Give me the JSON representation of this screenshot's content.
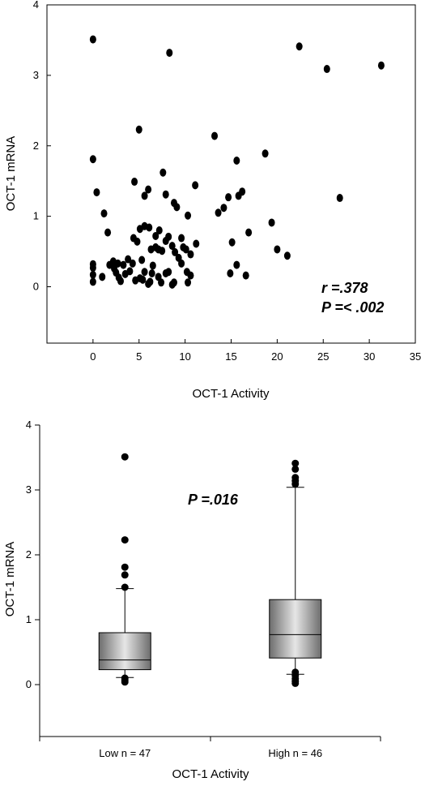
{
  "chart_data": [
    {
      "type": "scatter",
      "xlabel": "OCT-1 Activity",
      "ylabel": "OCT-1 mRNA",
      "xlim": [
        -5,
        35
      ],
      "ylim": [
        -0.8,
        4
      ],
      "xticks": [
        0,
        5,
        10,
        15,
        20,
        25,
        30,
        35
      ],
      "yticks": [
        0,
        1,
        2,
        3,
        4
      ],
      "annotations": [
        "r =.378",
        "P =< .002"
      ],
      "points": [
        {
          "x": 0,
          "y": 3.51
        },
        {
          "x": 8.3,
          "y": 3.32
        },
        {
          "x": 22.4,
          "y": 3.41
        },
        {
          "x": 25.4,
          "y": 3.09
        },
        {
          "x": 31.3,
          "y": 3.14
        },
        {
          "x": 5.0,
          "y": 2.23
        },
        {
          "x": 13.2,
          "y": 2.14
        },
        {
          "x": 18.7,
          "y": 1.89
        },
        {
          "x": 0,
          "y": 1.81
        },
        {
          "x": 15.6,
          "y": 1.79
        },
        {
          "x": 7.6,
          "y": 1.62
        },
        {
          "x": 4.5,
          "y": 1.49
        },
        {
          "x": 11.1,
          "y": 1.44
        },
        {
          "x": 6.0,
          "y": 1.38
        },
        {
          "x": 0.4,
          "y": 1.34
        },
        {
          "x": 16.2,
          "y": 1.35
        },
        {
          "x": 5.6,
          "y": 1.29
        },
        {
          "x": 7.9,
          "y": 1.31
        },
        {
          "x": 15.8,
          "y": 1.29
        },
        {
          "x": 14.7,
          "y": 1.27
        },
        {
          "x": 26.8,
          "y": 1.26
        },
        {
          "x": 8.8,
          "y": 1.19
        },
        {
          "x": 9.1,
          "y": 1.13
        },
        {
          "x": 14.2,
          "y": 1.12
        },
        {
          "x": 13.6,
          "y": 1.05
        },
        {
          "x": 1.2,
          "y": 1.04
        },
        {
          "x": 10.3,
          "y": 1.01
        },
        {
          "x": 19.4,
          "y": 0.91
        },
        {
          "x": 5.6,
          "y": 0.86
        },
        {
          "x": 6.1,
          "y": 0.84
        },
        {
          "x": 5.1,
          "y": 0.82
        },
        {
          "x": 1.6,
          "y": 0.77
        },
        {
          "x": 7.2,
          "y": 0.8
        },
        {
          "x": 16.9,
          "y": 0.77
        },
        {
          "x": 9.6,
          "y": 0.69
        },
        {
          "x": 8.2,
          "y": 0.71
        },
        {
          "x": 6.8,
          "y": 0.72
        },
        {
          "x": 4.4,
          "y": 0.69
        },
        {
          "x": 4.8,
          "y": 0.64
        },
        {
          "x": 7.9,
          "y": 0.65
        },
        {
          "x": 15.1,
          "y": 0.63
        },
        {
          "x": 11.2,
          "y": 0.61
        },
        {
          "x": 8.6,
          "y": 0.58
        },
        {
          "x": 9.8,
          "y": 0.56
        },
        {
          "x": 6.8,
          "y": 0.56
        },
        {
          "x": 7.1,
          "y": 0.53
        },
        {
          "x": 10.1,
          "y": 0.53
        },
        {
          "x": 6.3,
          "y": 0.53
        },
        {
          "x": 7.5,
          "y": 0.51
        },
        {
          "x": 8.9,
          "y": 0.49
        },
        {
          "x": 20.0,
          "y": 0.53
        },
        {
          "x": 10.6,
          "y": 0.46
        },
        {
          "x": 21.1,
          "y": 0.44
        },
        {
          "x": 9.3,
          "y": 0.41
        },
        {
          "x": 3.8,
          "y": 0.39
        },
        {
          "x": 5.3,
          "y": 0.38
        },
        {
          "x": 2.2,
          "y": 0.36
        },
        {
          "x": 4.3,
          "y": 0.33
        },
        {
          "x": 2.7,
          "y": 0.33
        },
        {
          "x": 3.3,
          "y": 0.31
        },
        {
          "x": 1.8,
          "y": 0.31
        },
        {
          "x": 15.6,
          "y": 0.31
        },
        {
          "x": 0,
          "y": 0.32
        },
        {
          "x": 0,
          "y": 0.27
        },
        {
          "x": 2.3,
          "y": 0.26
        },
        {
          "x": 4.0,
          "y": 0.22
        },
        {
          "x": 5.6,
          "y": 0.21
        },
        {
          "x": 6.4,
          "y": 0.19
        },
        {
          "x": 8.2,
          "y": 0.21
        },
        {
          "x": 14.9,
          "y": 0.19
        },
        {
          "x": 10.2,
          "y": 0.21
        },
        {
          "x": 7.9,
          "y": 0.19
        },
        {
          "x": 0,
          "y": 0.17
        },
        {
          "x": 10.6,
          "y": 0.16
        },
        {
          "x": 16.6,
          "y": 0.16
        },
        {
          "x": 1.0,
          "y": 0.14
        },
        {
          "x": 2.8,
          "y": 0.13
        },
        {
          "x": 7.1,
          "y": 0.14
        },
        {
          "x": 5.1,
          "y": 0.12
        },
        {
          "x": 3.0,
          "y": 0.08
        },
        {
          "x": 4.6,
          "y": 0.09
        },
        {
          "x": 0,
          "y": 0.07
        },
        {
          "x": 8.8,
          "y": 0.06
        },
        {
          "x": 10.3,
          "y": 0.06
        },
        {
          "x": 6.2,
          "y": 0.07
        },
        {
          "x": 7.4,
          "y": 0.06
        },
        {
          "x": 6.0,
          "y": 0.04
        },
        {
          "x": 8.6,
          "y": 0.03
        },
        {
          "x": 5.4,
          "y": 0.1
        },
        {
          "x": 3.5,
          "y": 0.18
        },
        {
          "x": 9.6,
          "y": 0.33
        },
        {
          "x": 2.5,
          "y": 0.2
        },
        {
          "x": 6.5,
          "y": 0.3
        }
      ]
    },
    {
      "type": "box",
      "xlabel": "OCT-1 Activity",
      "ylabel": "OCT-1 mRNA",
      "ylim": [
        -0.8,
        4
      ],
      "yticks": [
        0,
        1,
        2,
        3,
        4
      ],
      "annotations": [
        "P =.016"
      ],
      "groups": [
        {
          "label": "Low n = 47",
          "q1": 0.23,
          "median": 0.38,
          "q3": 0.8,
          "whisker_low": 0.11,
          "whisker_high": 1.48,
          "outliers": [
            3.51,
            2.23,
            1.81,
            1.69,
            1.5,
            0.1,
            0.07,
            0.04
          ]
        },
        {
          "label": "High n = 46",
          "q1": 0.41,
          "median": 0.77,
          "q3": 1.31,
          "whisker_low": 0.16,
          "whisker_high": 3.04,
          "outliers": [
            3.41,
            3.32,
            3.19,
            3.14,
            3.09,
            0.19,
            0.14,
            0.09,
            0.05,
            0.02
          ]
        }
      ]
    }
  ]
}
